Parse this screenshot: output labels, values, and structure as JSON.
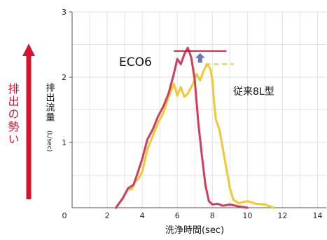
{
  "chart_data": {
    "type": "line",
    "xlabel": "洗浄時間(sec)",
    "ylabel": "排出流量",
    "ylabel_unit": "(L/sec)",
    "side_label": "排出の勢い",
    "xlim": [
      0,
      14.5
    ],
    "ylim": [
      0,
      3
    ],
    "xticks": [
      "2",
      "4",
      "6",
      "8",
      "10",
      "12",
      "14"
    ],
    "xtick_values": [
      2,
      4,
      6,
      8,
      10,
      12,
      14
    ],
    "x_origin_label": "0",
    "yticks": [
      "1",
      "2",
      "3"
    ],
    "ytick_values": [
      1,
      2,
      3
    ],
    "grid": true,
    "series": [
      {
        "name": "従来8L型",
        "color": "#f2c832",
        "x": [
          2.5,
          2.9,
          3.2,
          3.4,
          3.6,
          3.8,
          4.0,
          4.3,
          4.6,
          4.9,
          5.2,
          5.5,
          5.8,
          6.0,
          6.2,
          6.4,
          6.6,
          6.9,
          7.1,
          7.3,
          7.5,
          7.7,
          7.9,
          8.0,
          8.1,
          8.2,
          8.4,
          8.6,
          8.8,
          9.0,
          9.2,
          9.5,
          10.0,
          10.5,
          11.0,
          11.5
        ],
        "y": [
          0.0,
          0.15,
          0.3,
          0.28,
          0.4,
          0.45,
          0.55,
          0.9,
          1.1,
          1.3,
          1.45,
          1.7,
          1.9,
          1.72,
          1.85,
          1.7,
          1.75,
          1.9,
          2.05,
          1.95,
          2.1,
          2.2,
          2.12,
          1.95,
          1.6,
          1.35,
          1.2,
          0.9,
          0.6,
          0.3,
          0.12,
          0.07,
          0.1,
          0.06,
          0.05,
          0.0
        ]
      },
      {
        "name": "ECO6",
        "color": "#d43c5a",
        "x": [
          2.5,
          2.9,
          3.2,
          3.5,
          3.7,
          4.0,
          4.3,
          4.6,
          4.9,
          5.2,
          5.5,
          5.8,
          6.0,
          6.2,
          6.4,
          6.6,
          6.8,
          7.0,
          7.2,
          7.4,
          7.6,
          7.8,
          8.0,
          8.3,
          8.6,
          9.0,
          9.5,
          10.0
        ],
        "y": [
          0.0,
          0.15,
          0.3,
          0.35,
          0.5,
          0.75,
          1.05,
          1.2,
          1.4,
          1.55,
          1.75,
          2.05,
          2.28,
          2.2,
          2.35,
          2.45,
          2.3,
          1.95,
          1.3,
          0.8,
          0.35,
          0.1,
          0.05,
          0.06,
          0.03,
          0.05,
          0.02,
          0.0
        ]
      }
    ],
    "annotations": {
      "eco6_peak": 2.4,
      "conventional_peak": 2.2,
      "eco6_label": "ECO6",
      "conventional_label": "従来8L型"
    }
  },
  "colors": {
    "grid": "#e2e2e2",
    "axis": "#555555",
    "side_arrow": "#d8122f",
    "side_text": "#d8122f",
    "peak_arrow": "#6674b8",
    "peak_line": "#c8102e",
    "conv_peak_line": "#f2c832"
  }
}
